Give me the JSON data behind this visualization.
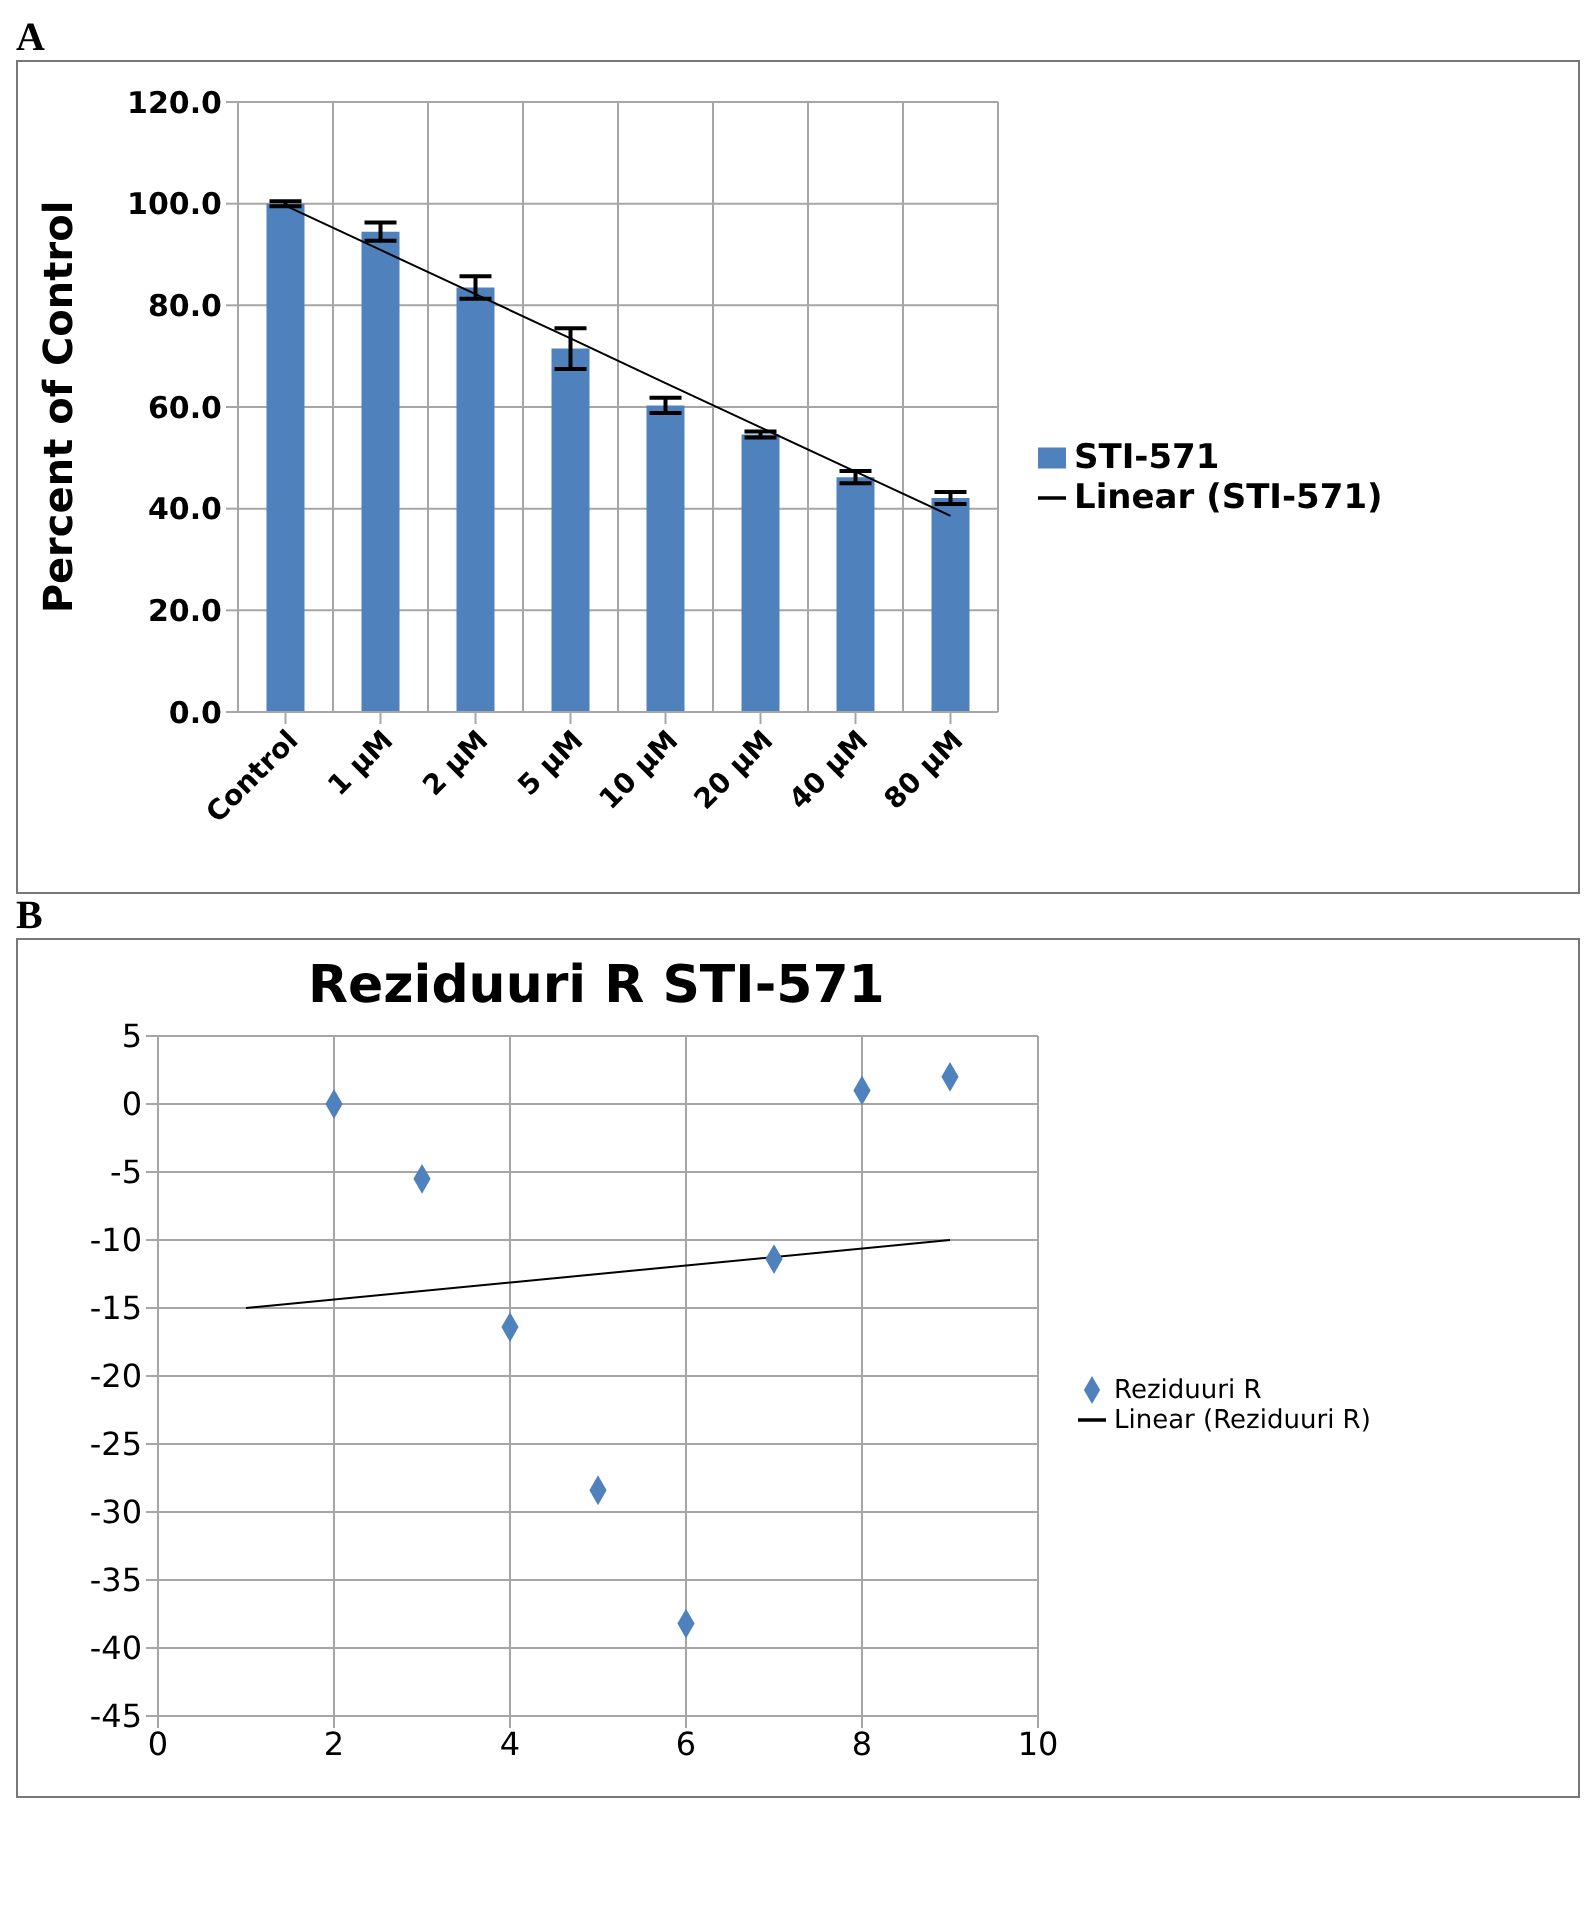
{
  "chart_data": [
    {
      "type": "bar",
      "annotations": [
        "A"
      ],
      "ylabel": "Percent of Control",
      "categories": [
        "Control",
        "1 µM",
        "2 µM",
        "5 µM",
        "10 µM",
        "20 µM",
        "40 µM",
        "80 µM"
      ],
      "series": [
        {
          "name": "STI-571",
          "type": "bar",
          "color": "#4f81bd",
          "values": [
            100.0,
            94.5,
            83.5,
            71.5,
            60.3,
            54.6,
            46.2,
            42.1
          ],
          "errors": [
            0.5,
            1.8,
            2.2,
            4.0,
            1.5,
            0.6,
            1.2,
            1.2
          ]
        },
        {
          "name": "Linear (STI-571)",
          "type": "line",
          "color": "#000000",
          "values": [
            99.6,
            90.9,
            82.2,
            73.5,
            64.7,
            56.0,
            47.3,
            38.6
          ]
        }
      ],
      "ylim": [
        0,
        120
      ],
      "yticks": [
        {
          "value": 0,
          "label": "0.0"
        },
        {
          "value": 20,
          "label": "20.0"
        },
        {
          "value": 40,
          "label": "40.0"
        },
        {
          "value": 60,
          "label": "60.0"
        },
        {
          "value": 80,
          "label": "80.0"
        },
        {
          "value": 100,
          "label": "100.0"
        },
        {
          "value": 120,
          "label": "120.0"
        }
      ],
      "grid": true,
      "legend": "right"
    },
    {
      "type": "scatter",
      "annotations": [
        "B"
      ],
      "title": "Reziduuri R STI-571",
      "series": [
        {
          "name": "Reziduuri R",
          "type": "scatter",
          "marker": "diamond",
          "color": "#4f81bd",
          "x": [
            2,
            3,
            4,
            5,
            6,
            7,
            8,
            9
          ],
          "values": [
            0,
            -5.5,
            -16.4,
            -28.4,
            -38.2,
            -11.4,
            1,
            2
          ]
        },
        {
          "name": "Linear (Reziduuri R)",
          "type": "line",
          "color": "#000000",
          "x": [
            1,
            9
          ],
          "values": [
            -15,
            -10
          ]
        }
      ],
      "xlim": [
        0,
        10
      ],
      "xticks": [
        0,
        2,
        4,
        6,
        8,
        10
      ],
      "ylim": [
        -45,
        5
      ],
      "yticks": [
        -45,
        -40,
        -35,
        -30,
        -25,
        -20,
        -15,
        -10,
        -5,
        0,
        5
      ],
      "grid": true,
      "legend": "right"
    }
  ]
}
